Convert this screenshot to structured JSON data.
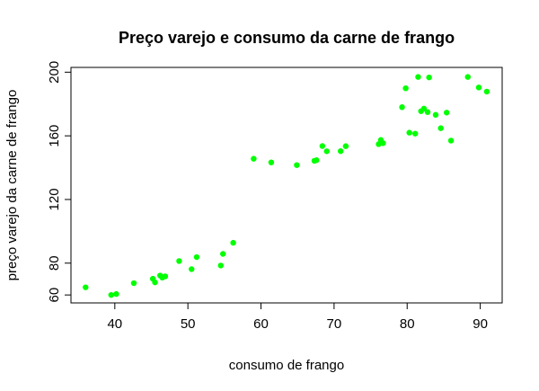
{
  "chart_data": {
    "type": "scatter",
    "title": "Preço varejo e consumo da carne de frango",
    "xlabel": "consumo de frango",
    "ylabel": "preço varejo da carne de frango",
    "xlim": [
      34,
      93
    ],
    "ylim": [
      55,
      203
    ],
    "xticks": [
      40,
      50,
      60,
      70,
      80,
      90
    ],
    "yticks": [
      60,
      80,
      120,
      160,
      200
    ],
    "grid": false,
    "point_color": "#00ff00",
    "points": [
      [
        36.0,
        64.8
      ],
      [
        39.5,
        60.0
      ],
      [
        40.2,
        60.6
      ],
      [
        42.6,
        67.4
      ],
      [
        45.2,
        70.2
      ],
      [
        45.5,
        67.9
      ],
      [
        46.2,
        72.2
      ],
      [
        46.5,
        70.9
      ],
      [
        46.9,
        71.7
      ],
      [
        48.8,
        81.3
      ],
      [
        50.5,
        76.2
      ],
      [
        51.2,
        83.8
      ],
      [
        54.5,
        78.5
      ],
      [
        54.8,
        85.8
      ],
      [
        56.2,
        92.8
      ],
      [
        59.0,
        145.6
      ],
      [
        61.4,
        143.3
      ],
      [
        64.9,
        141.6
      ],
      [
        67.3,
        144.3
      ],
      [
        67.6,
        144.7
      ],
      [
        68.4,
        153.6
      ],
      [
        69.0,
        150.3
      ],
      [
        70.9,
        150.4
      ],
      [
        71.6,
        153.5
      ],
      [
        76.1,
        154.8
      ],
      [
        76.4,
        157.4
      ],
      [
        76.7,
        155.4
      ],
      [
        79.3,
        178.0
      ],
      [
        79.8,
        189.9
      ],
      [
        80.3,
        162.0
      ],
      [
        81.1,
        161.4
      ],
      [
        81.5,
        197.0
      ],
      [
        81.9,
        175.5
      ],
      [
        82.3,
        177.1
      ],
      [
        82.8,
        174.9
      ],
      [
        83.0,
        196.7
      ],
      [
        83.9,
        173.2
      ],
      [
        84.6,
        164.8
      ],
      [
        85.4,
        174.6
      ],
      [
        86.0,
        157.0
      ],
      [
        88.3,
        197.0
      ],
      [
        89.8,
        190.4
      ],
      [
        90.9,
        187.8
      ]
    ]
  }
}
